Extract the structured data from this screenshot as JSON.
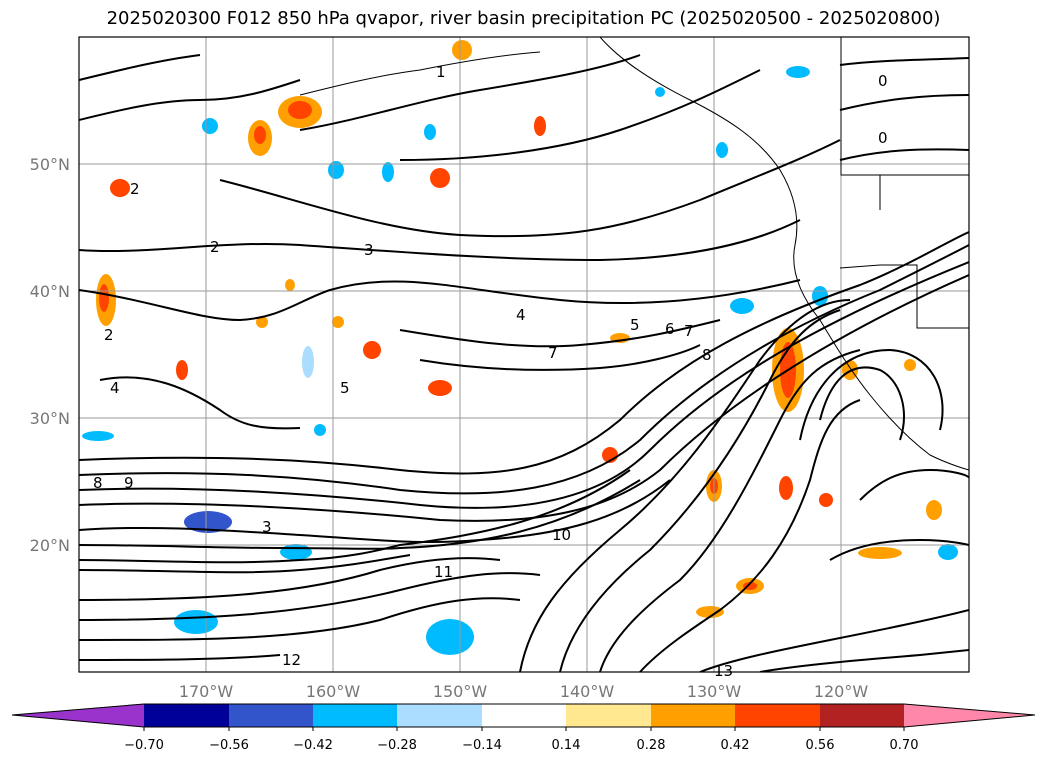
{
  "title": "2025020300 F012 850 hPa qvapor, river basin precipitation PC (2025020500 - 2025020800)",
  "lat_labels": [
    "50°N",
    "40°N",
    "30°N",
    "20°N"
  ],
  "lon_labels": [
    "170°W",
    "160°W",
    "150°W",
    "140°W",
    "130°W",
    "120°W"
  ],
  "colorbar": {
    "tick_labels": [
      "−0.70",
      "−0.56",
      "−0.42",
      "−0.28",
      "−0.14",
      "0.14",
      "0.28",
      "0.42",
      "0.56",
      "0.70"
    ],
    "colors": [
      "#9933cc",
      "#000099",
      "#3355cc",
      "#00bbff",
      "#aaddff",
      "#ffffff",
      "#ffe890",
      "#ffa000",
      "#ff4400",
      "#b22222",
      "#ff88aa"
    ]
  },
  "contour_labels": [
    "0",
    "0",
    "1",
    "2",
    "2",
    "2",
    "3",
    "3",
    "4",
    "4",
    "5",
    "5",
    "6",
    "7",
    "7",
    "8",
    "8",
    "9",
    "10",
    "11",
    "12",
    "13"
  ]
}
